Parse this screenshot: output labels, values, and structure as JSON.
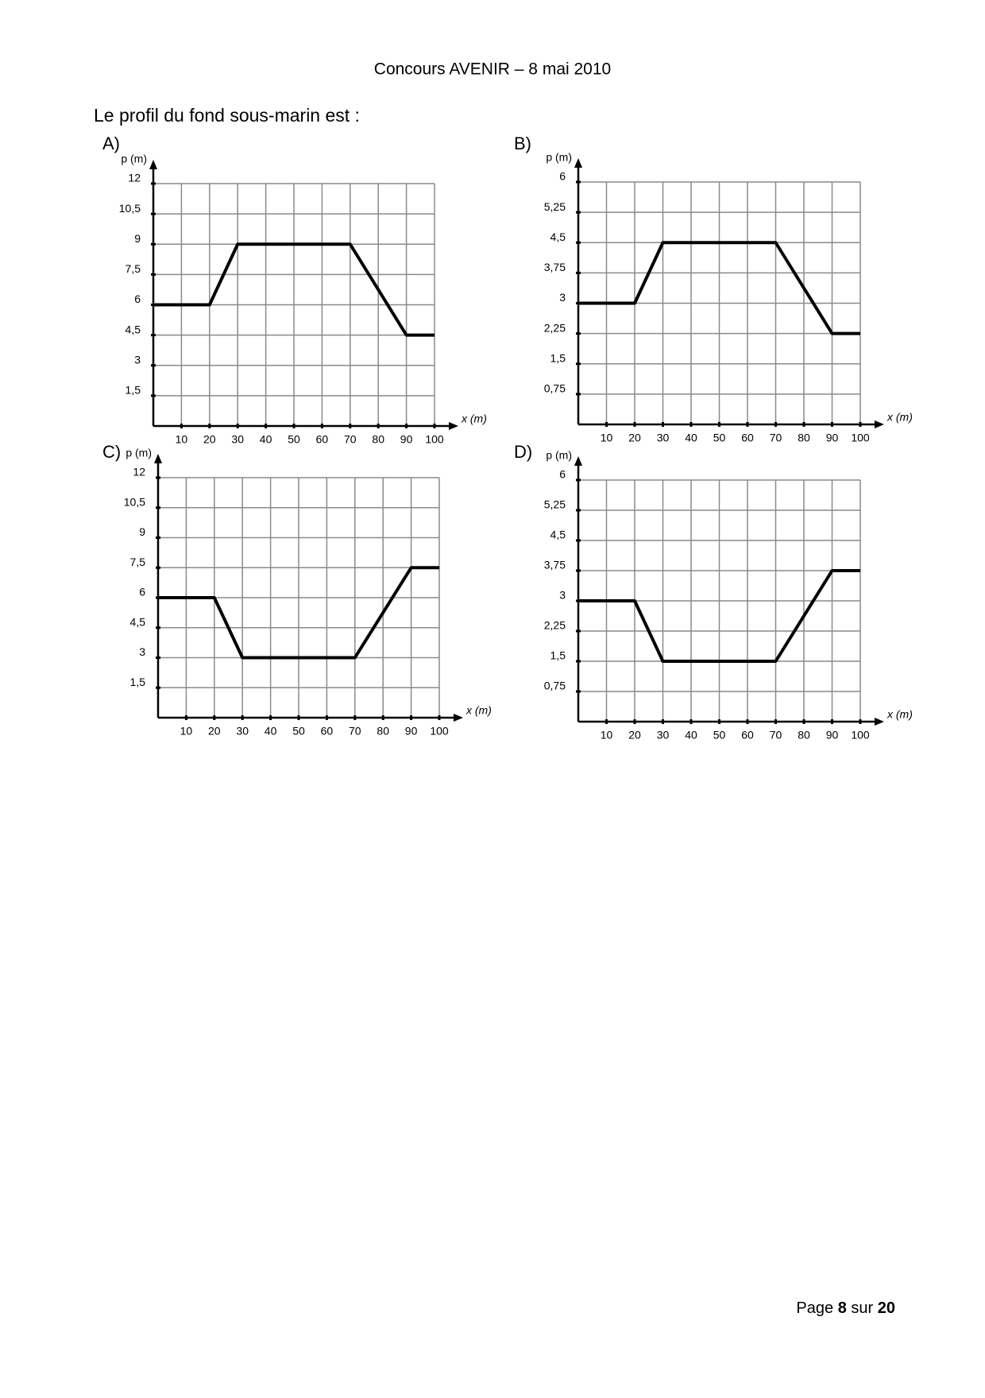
{
  "header": "Concours AVENIR – 8 mai 2010",
  "question": "Le profil du fond sous-marin est :",
  "footer": {
    "prefix": "Page",
    "page": "8",
    "middle": "sur",
    "total": "20"
  },
  "chart_data": [
    {
      "type": "line",
      "label": "A)",
      "ylabel": "p (m)",
      "xlabel": "x (m)",
      "grid": true,
      "color": "#000000",
      "x": [
        0,
        20,
        30,
        70,
        90,
        100
      ],
      "values": [
        6,
        6,
        9,
        9,
        4.5,
        4.5
      ],
      "xlim": [
        0,
        100
      ],
      "xticks": [
        10,
        20,
        30,
        40,
        50,
        60,
        70,
        80,
        90,
        100
      ],
      "ylim": [
        0,
        12
      ],
      "yticks": [
        {
          "value": 1.5,
          "label": "1,5"
        },
        3,
        {
          "value": 4.5,
          "label": "4,5"
        },
        6,
        {
          "value": 7.5,
          "label": "7,5"
        },
        9,
        {
          "value": 10.5,
          "label": "10,5"
        },
        12
      ]
    },
    {
      "type": "line",
      "label": "B)",
      "ylabel": "p (m)",
      "xlabel": "x (m)",
      "grid": true,
      "color": "#000000",
      "x": [
        0,
        20,
        30,
        70,
        90,
        100
      ],
      "values": [
        3,
        3,
        4.5,
        4.5,
        2.25,
        2.25
      ],
      "xlim": [
        0,
        100
      ],
      "xticks": [
        10,
        20,
        30,
        40,
        50,
        60,
        70,
        80,
        90,
        100
      ],
      "ylim": [
        0,
        6
      ],
      "yticks": [
        {
          "value": 0.75,
          "label": "0,75"
        },
        {
          "value": 1.5,
          "label": "1,5"
        },
        {
          "value": 2.25,
          "label": "2,25"
        },
        3,
        {
          "value": 3.75,
          "label": "3,75"
        },
        {
          "value": 4.5,
          "label": "4,5"
        },
        {
          "value": 5.25,
          "label": "5,25"
        },
        6
      ]
    },
    {
      "type": "line",
      "label": "C)",
      "ylabel": "p (m)",
      "xlabel": "x (m)",
      "grid": true,
      "color": "#000000",
      "x": [
        0,
        20,
        30,
        70,
        90,
        100
      ],
      "values": [
        6,
        6,
        3,
        3,
        7.5,
        7.5
      ],
      "xlim": [
        0,
        100
      ],
      "xticks": [
        10,
        20,
        30,
        40,
        50,
        60,
        70,
        80,
        90,
        100
      ],
      "ylim": [
        0,
        12
      ],
      "yticks": [
        {
          "value": 1.5,
          "label": "1,5"
        },
        3,
        {
          "value": 4.5,
          "label": "4,5"
        },
        6,
        {
          "value": 7.5,
          "label": "7,5"
        },
        9,
        {
          "value": 10.5,
          "label": "10,5"
        },
        12
      ]
    },
    {
      "type": "line",
      "label": "D)",
      "ylabel": "p (m)",
      "xlabel": "x (m)",
      "grid": true,
      "color": "#000000",
      "x": [
        0,
        20,
        30,
        70,
        90,
        100
      ],
      "values": [
        3,
        3,
        1.5,
        1.5,
        3.75,
        3.75
      ],
      "xlim": [
        0,
        100
      ],
      "xticks": [
        10,
        20,
        30,
        40,
        50,
        60,
        70,
        80,
        90,
        100
      ],
      "ylim": [
        0,
        6
      ],
      "yticks": [
        {
          "value": 0.75,
          "label": "0,75"
        },
        {
          "value": 1.5,
          "label": "1,5"
        },
        {
          "value": 2.25,
          "label": "2,25"
        },
        3,
        {
          "value": 3.75,
          "label": "3,75"
        },
        {
          "value": 4.5,
          "label": "4,5"
        },
        {
          "value": 5.25,
          "label": "5,25"
        },
        6
      ]
    }
  ]
}
